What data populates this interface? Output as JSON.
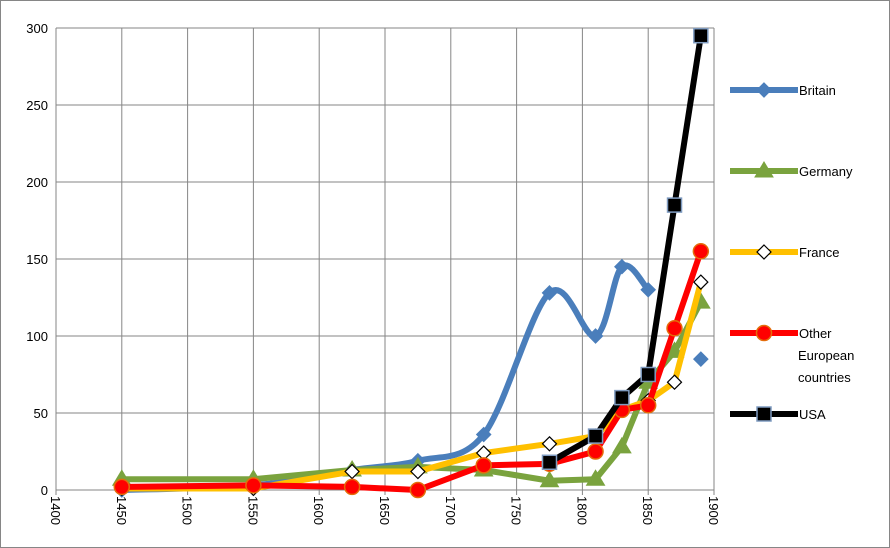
{
  "chart_data": {
    "type": "line",
    "x": [
      1450,
      1550,
      1625,
      1675,
      1725,
      1775,
      1810,
      1830,
      1850,
      1870,
      1890
    ],
    "series": [
      {
        "name": "Britain",
        "color": "#4a7ebb",
        "marker": "diamond",
        "marker_fill": "#4a7ebb",
        "marker_stroke": "#4a7ebb",
        "smooth": true,
        "values": [
          0,
          3,
          13,
          19,
          36,
          128,
          100,
          145,
          130,
          null,
          85
        ]
      },
      {
        "name": "Germany",
        "color": "#7aa33e",
        "marker": "triangle",
        "marker_fill": "#7aa33e",
        "marker_stroke": "#7aa33e",
        "smooth": false,
        "values": [
          7,
          7,
          13,
          15,
          13,
          6,
          7,
          28,
          70,
          90,
          122
        ]
      },
      {
        "name": "France",
        "color": "#ffc000",
        "marker": "diamond",
        "marker_fill": "#ffffff",
        "marker_stroke": "#000000",
        "smooth": false,
        "values": [
          1,
          1,
          12,
          12,
          24,
          30,
          35,
          52,
          58,
          70,
          135
        ]
      },
      {
        "name": "Other European countries",
        "color": "#ff0000",
        "marker": "circle",
        "marker_fill": "#ff0000",
        "marker_stroke": "#e46c0a",
        "smooth": false,
        "values": [
          2,
          3,
          2,
          0,
          16,
          17,
          25,
          52,
          55,
          105,
          155
        ]
      },
      {
        "name": "USA",
        "color": "#000000",
        "marker": "square",
        "marker_fill": "#000000",
        "marker_stroke": "#7f9bc0",
        "smooth": false,
        "values": [
          null,
          null,
          null,
          null,
          null,
          18,
          35,
          60,
          75,
          185,
          295
        ]
      }
    ],
    "xlim": [
      1400,
      1900
    ],
    "xticks": [
      1400,
      1450,
      1500,
      1550,
      1600,
      1650,
      1700,
      1750,
      1800,
      1850,
      1900
    ],
    "ylim": [
      0,
      300
    ],
    "yticks": [
      0,
      50,
      100,
      150,
      200,
      250,
      300
    ],
    "grid": true,
    "legend": "right"
  }
}
